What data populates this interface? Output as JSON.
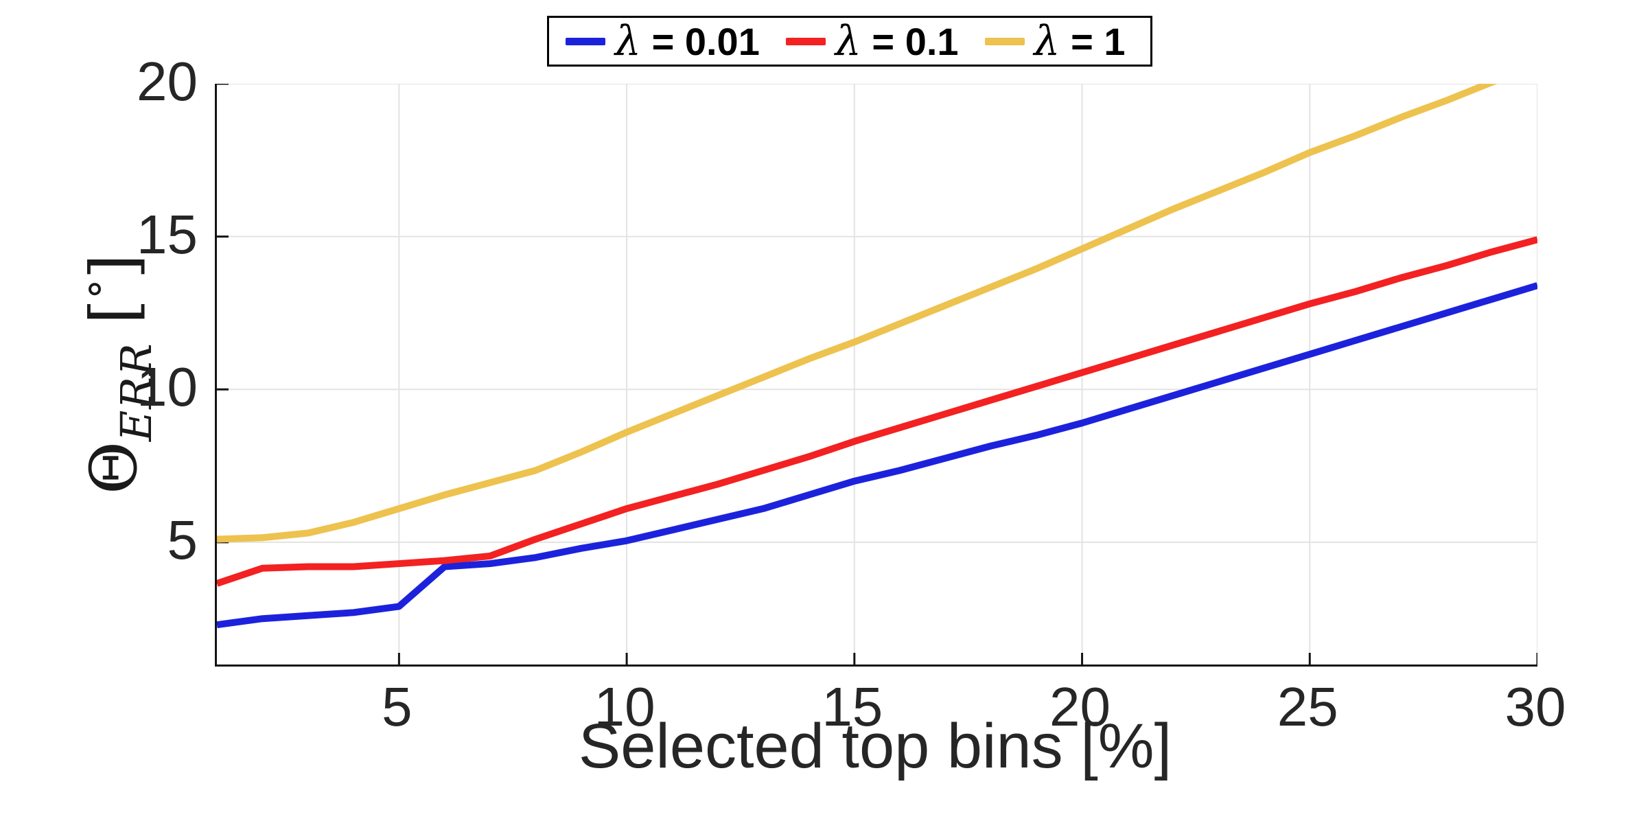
{
  "figure": {
    "background": "#FFFFFF"
  },
  "legend": {
    "background": "#FFFFFF",
    "border_color": "#000000",
    "position": "top-center"
  },
  "axes": {
    "xlabel": "Selected top bins [%]",
    "ylabel": {
      "text": "Θ_ERR [°]",
      "theta": "Θ",
      "subscript": "ERR",
      "bracket_open": "[",
      "degree": "°",
      "bracket_close": "]"
    },
    "xtick_labels": [
      "5",
      "10",
      "15",
      "20",
      "25",
      "30"
    ],
    "ytick_labels": [
      "5",
      "10",
      "15",
      "20"
    ],
    "spine_color": "#141414",
    "grid_color": "#E3E3E3",
    "tick_label_color": "#262626"
  },
  "chart_data": {
    "type": "line",
    "title": "",
    "xlabel": "Selected top bins [%]",
    "ylabel": "Θ_ERR [°]",
    "xlim": [
      1,
      30
    ],
    "ylim": [
      1,
      20
    ],
    "xticks": [
      5,
      10,
      15,
      20,
      25,
      30
    ],
    "yticks": [
      5,
      10,
      15,
      20
    ],
    "grid": true,
    "legend_position": "top-center",
    "line_width": 10,
    "x": [
      1,
      2,
      3,
      4,
      5,
      6,
      7,
      8,
      9,
      10,
      11,
      12,
      13,
      14,
      15,
      16,
      17,
      18,
      19,
      20,
      21,
      22,
      23,
      24,
      25,
      26,
      27,
      28,
      29,
      30
    ],
    "series": [
      {
        "name": "λ = 0.01",
        "color": "#1C22DC",
        "values": [
          2.3,
          2.5,
          2.6,
          2.7,
          2.9,
          4.2,
          4.3,
          4.5,
          4.8,
          5.05,
          5.4,
          5.75,
          6.1,
          6.55,
          7.0,
          7.35,
          7.75,
          8.15,
          8.5,
          8.9,
          9.35,
          9.8,
          10.25,
          10.7,
          11.15,
          11.6,
          12.05,
          12.5,
          12.95,
          13.4
        ]
      },
      {
        "name": "λ = 0.1",
        "color": "#F32121",
        "values": [
          3.65,
          4.15,
          4.2,
          4.2,
          4.3,
          4.4,
          4.55,
          5.1,
          5.6,
          6.1,
          6.5,
          6.9,
          7.35,
          7.8,
          8.3,
          8.75,
          9.2,
          9.65,
          10.1,
          10.55,
          11.0,
          11.45,
          11.9,
          12.35,
          12.8,
          13.2,
          13.65,
          14.05,
          14.5,
          14.9
        ]
      },
      {
        "name": "λ = 1",
        "color": "#EDC24E",
        "values": [
          5.1,
          5.15,
          5.3,
          5.65,
          6.1,
          6.55,
          6.95,
          7.35,
          7.95,
          8.6,
          9.2,
          9.8,
          10.4,
          11.0,
          11.55,
          12.15,
          12.75,
          13.35,
          13.95,
          14.6,
          15.25,
          15.9,
          16.5,
          17.1,
          17.75,
          18.3,
          18.9,
          19.45,
          20.05,
          20.65
        ]
      }
    ]
  }
}
